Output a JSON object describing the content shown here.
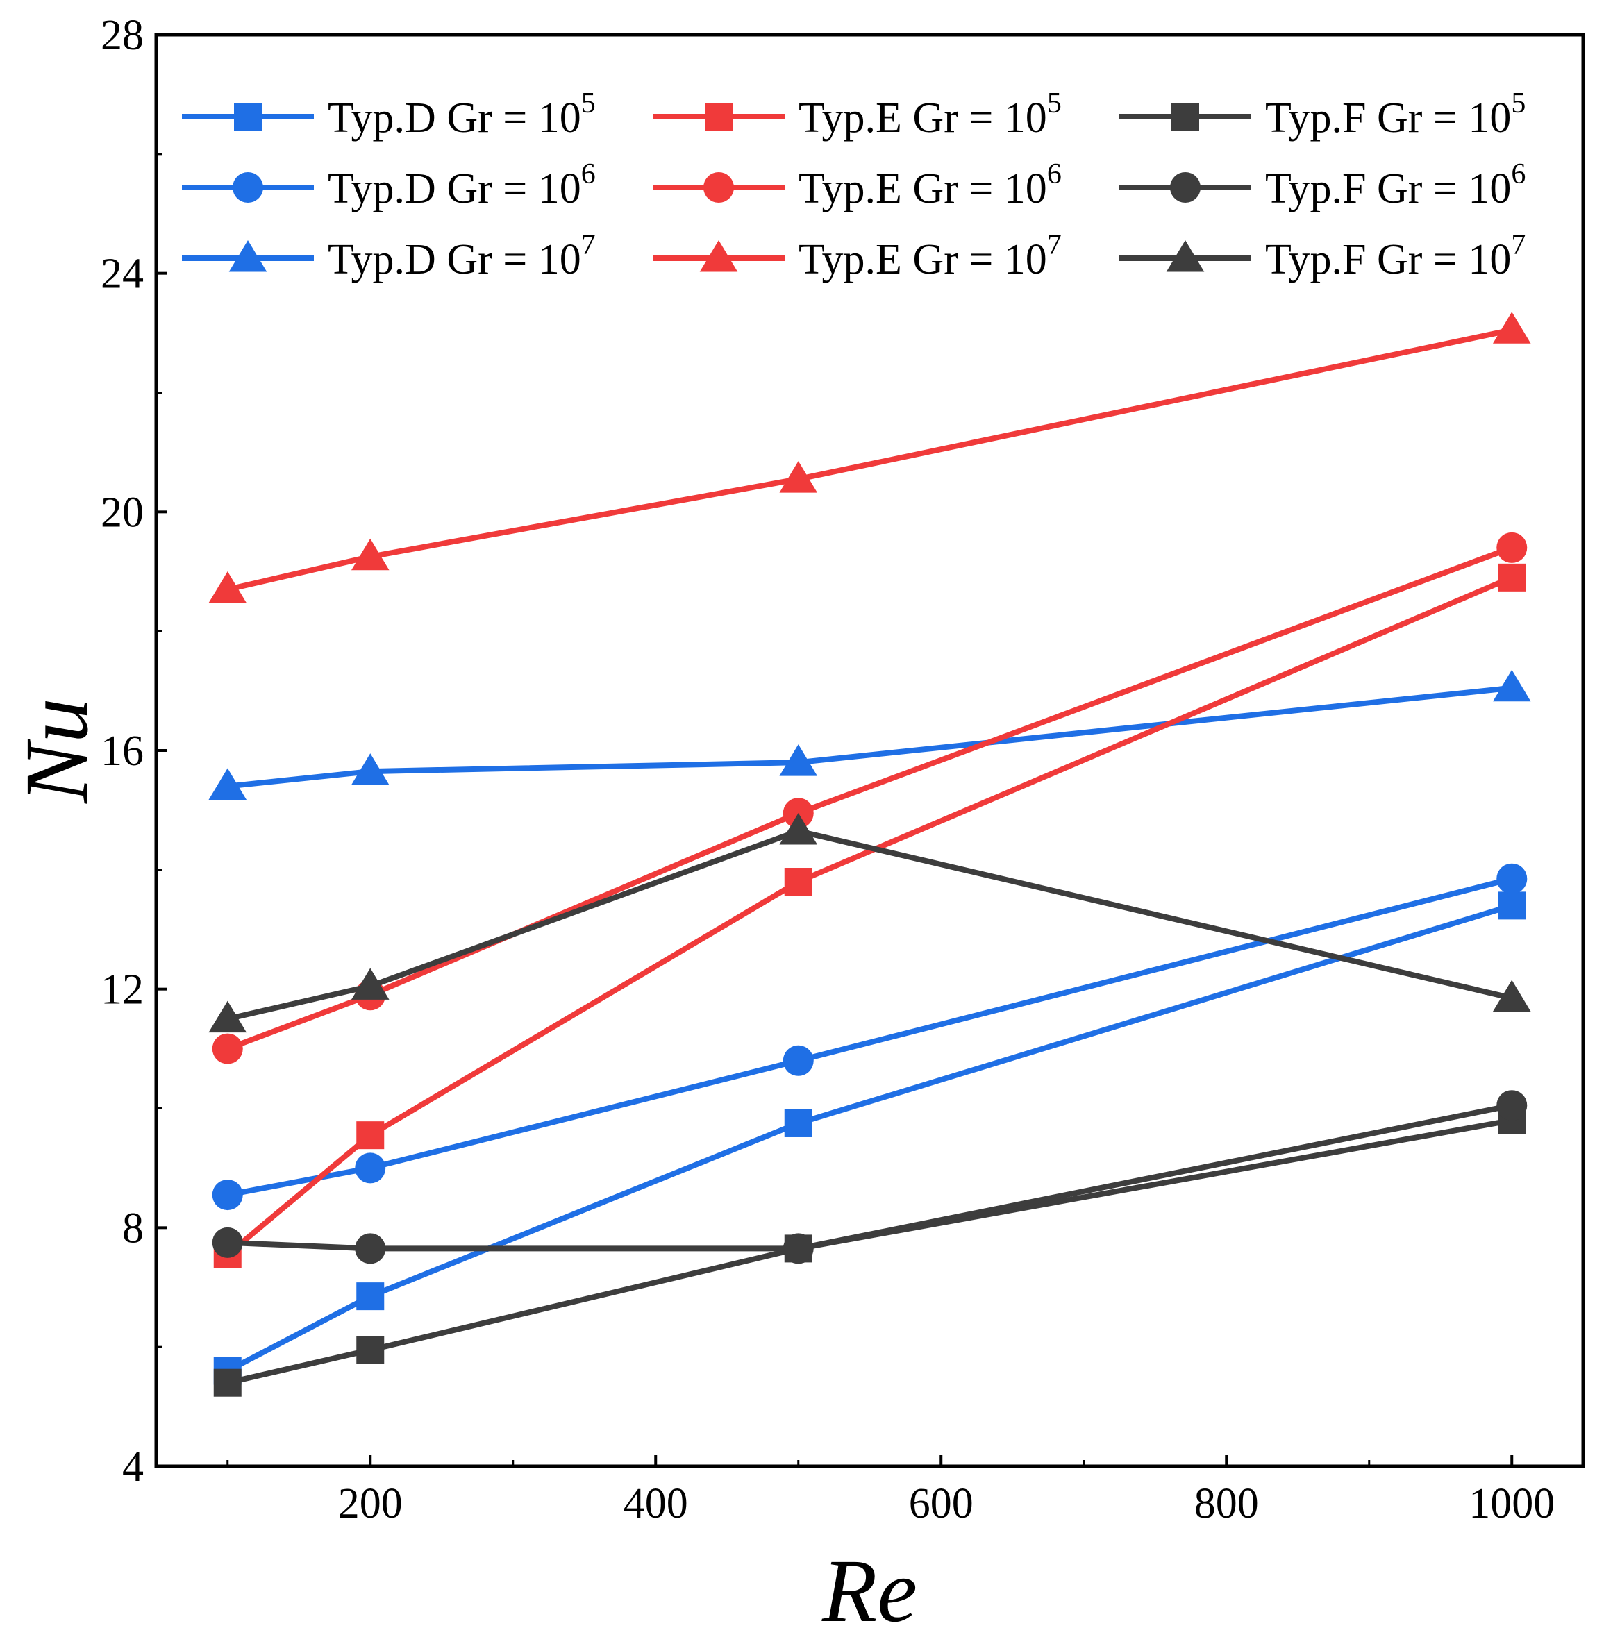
{
  "chart_data": {
    "type": "line",
    "title": "",
    "xlabel": "Re",
    "ylabel": "Nu",
    "xlim": [
      50,
      1050
    ],
    "ylim": [
      4,
      28
    ],
    "xticks": [
      200,
      400,
      600,
      800,
      1000
    ],
    "yticks": [
      4,
      8,
      12,
      16,
      20,
      24,
      28
    ],
    "x": [
      100,
      200,
      500,
      1000
    ],
    "legend_position": "top",
    "grid": false,
    "series": [
      {
        "name": "Typ.D Gr = 10^5",
        "label": "Typ.D Gr = 10",
        "exponent": "5",
        "color": "#1f6fe5",
        "marker": "square",
        "values": [
          5.6,
          6.85,
          9.75,
          13.4
        ]
      },
      {
        "name": "Typ.D Gr = 10^6",
        "label": "Typ.D Gr = 10",
        "exponent": "6",
        "color": "#1f6fe5",
        "marker": "circle",
        "values": [
          8.55,
          9.0,
          10.8,
          13.85
        ]
      },
      {
        "name": "Typ.D Gr = 10^7",
        "label": "Typ.D Gr = 10",
        "exponent": "7",
        "color": "#1f6fe5",
        "marker": "triangle",
        "values": [
          15.4,
          15.65,
          15.8,
          17.05
        ]
      },
      {
        "name": "Typ.E Gr = 10^5",
        "label": "Typ.E Gr = 10",
        "exponent": "5",
        "color": "#f03a3a",
        "marker": "square",
        "values": [
          7.55,
          9.55,
          13.8,
          18.9
        ]
      },
      {
        "name": "Typ.E Gr = 10^6",
        "label": "Typ.E Gr = 10",
        "exponent": "6",
        "color": "#f03a3a",
        "marker": "circle",
        "values": [
          11.0,
          11.9,
          14.95,
          19.4
        ]
      },
      {
        "name": "Typ.E Gr = 10^7",
        "label": "Typ.E Gr = 10",
        "exponent": "7",
        "color": "#f03a3a",
        "marker": "triangle",
        "values": [
          18.7,
          19.25,
          20.55,
          23.05
        ]
      },
      {
        "name": "Typ.F Gr = 10^5",
        "label": "Typ.F Gr = 10",
        "exponent": "5",
        "color": "#3d3d3d",
        "marker": "square",
        "values": [
          5.4,
          5.95,
          7.65,
          9.8
        ]
      },
      {
        "name": "Typ.F Gr = 10^6",
        "label": "Typ.F Gr = 10",
        "exponent": "6",
        "color": "#3d3d3d",
        "marker": "circle",
        "values": [
          7.75,
          7.65,
          7.65,
          10.05
        ]
      },
      {
        "name": "Typ.F Gr = 10^7",
        "label": "Typ.F Gr = 10",
        "exponent": "7",
        "color": "#3d3d3d",
        "marker": "triangle",
        "values": [
          11.5,
          12.05,
          14.65,
          11.85
        ]
      }
    ]
  }
}
